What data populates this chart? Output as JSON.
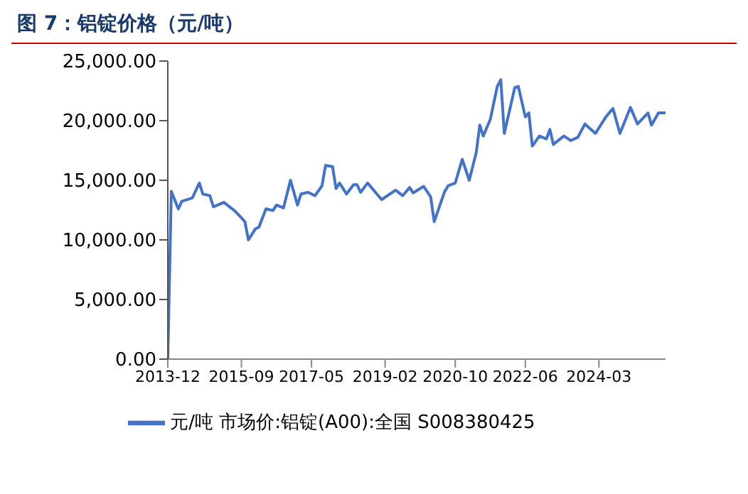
{
  "chart_data": {
    "type": "line",
    "title": "图 7：铝锭价格（元/吨）",
    "x": [
      "2013-12",
      "2014-01",
      "2014-03",
      "2014-04",
      "2014-07",
      "2014-09",
      "2014-10",
      "2014-12",
      "2015-01",
      "2015-04",
      "2015-07",
      "2015-09",
      "2015-10",
      "2015-11",
      "2016-01",
      "2016-02",
      "2016-04",
      "2016-06",
      "2016-07",
      "2016-09",
      "2016-11",
      "2017-01",
      "2017-02",
      "2017-04",
      "2017-06",
      "2017-08",
      "2017-09",
      "2017-11",
      "2017-12",
      "2018-01",
      "2018-03",
      "2018-05",
      "2018-06",
      "2018-07",
      "2018-09",
      "2019-01",
      "2019-05",
      "2019-07",
      "2019-09",
      "2019-10",
      "2020-01",
      "2020-03",
      "2020-04",
      "2020-07",
      "2020-08",
      "2020-10",
      "2020-12",
      "2021-02",
      "2021-04",
      "2021-05",
      "2021-06",
      "2021-08",
      "2021-10",
      "2021-11",
      "2021-12",
      "2022-03",
      "2022-04",
      "2022-06",
      "2022-07",
      "2022-08",
      "2022-10",
      "2022-12",
      "2023-01",
      "2023-02",
      "2023-05",
      "2023-07",
      "2023-09",
      "2023-11",
      "2024-02",
      "2024-05",
      "2024-07",
      "2024-09",
      "2024-12",
      "2025-02",
      "2025-05",
      "2025-06",
      "2025-08",
      "2025-10"
    ],
    "series": [
      {
        "name": "元/吨 市场价:铝锭(A00):全国 S008380425",
        "color": "#4472c4",
        "values": [
          0,
          14070,
          12600,
          13240,
          13520,
          14770,
          13850,
          13710,
          12780,
          13150,
          12460,
          11850,
          11530,
          10000,
          10930,
          11070,
          12600,
          12460,
          12920,
          12680,
          15000,
          12920,
          13850,
          13990,
          13710,
          14540,
          16250,
          16150,
          14300,
          14770,
          13850,
          14630,
          14630,
          13990,
          14770,
          13380,
          14170,
          13710,
          14400,
          13940,
          14490,
          13610,
          11530,
          14070,
          14540,
          14770,
          16760,
          15000,
          17320,
          19630,
          18710,
          20100,
          22870,
          23430,
          18930,
          22780,
          22870,
          20320,
          20650,
          17870,
          18710,
          18470,
          19260,
          18010,
          18710,
          18330,
          18610,
          19720,
          18930,
          20320,
          21020,
          18930,
          21110,
          19720,
          20650,
          19630,
          20650,
          20650
        ]
      }
    ],
    "xlim": [
      "2013-12",
      "2025-10"
    ],
    "xticks": [
      "2013-12",
      "2015-09",
      "2017-05",
      "2019-02",
      "2020-10",
      "2022-06",
      "2024-03"
    ],
    "ylim": [
      0,
      25000
    ],
    "yticks": [
      {
        "value": 0,
        "label": "0.00"
      },
      {
        "value": 5000,
        "label": "5,000.00"
      },
      {
        "value": 10000,
        "label": "10,000.00"
      },
      {
        "value": 15000,
        "label": "15,000.00"
      },
      {
        "value": 20000,
        "label": "20,000.00"
      },
      {
        "value": 25000,
        "label": "25,000.00"
      }
    ],
    "grid": false,
    "legend": "bottom",
    "marker": "none",
    "line_style": "solid"
  }
}
